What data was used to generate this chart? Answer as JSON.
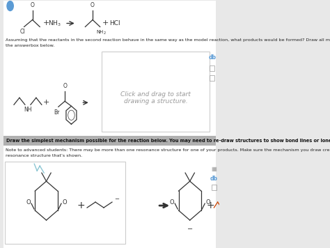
{
  "bg_color": "#e8e8e8",
  "white": "#ffffff",
  "dark": "#333333",
  "mid_gray": "#999999",
  "light_gray": "#cccccc",
  "blue": "#5b9bd5",
  "teal": "#70b8c8",
  "text_color": "#222222",
  "top_text_1": "Assuming that the reactants in the second reaction behave in the same way as the model reaction, what products would be formed? Draw all major products in",
  "top_text_2": "the answerbox below.",
  "draw_prompt_1": "Click and drag to start",
  "draw_prompt_2": "drawing a structure.",
  "sec2_line1": "Draw the simplest mechanism possible for the reaction below. You may need to re-draw structures to show bond lines or lone pairs.",
  "sec2_line2": "Note to advanced students: There may be more than one resonance structure for one of your products. Make sure the mechanism you draw creates the",
  "sec2_line3": "resonance structure that’s shown."
}
